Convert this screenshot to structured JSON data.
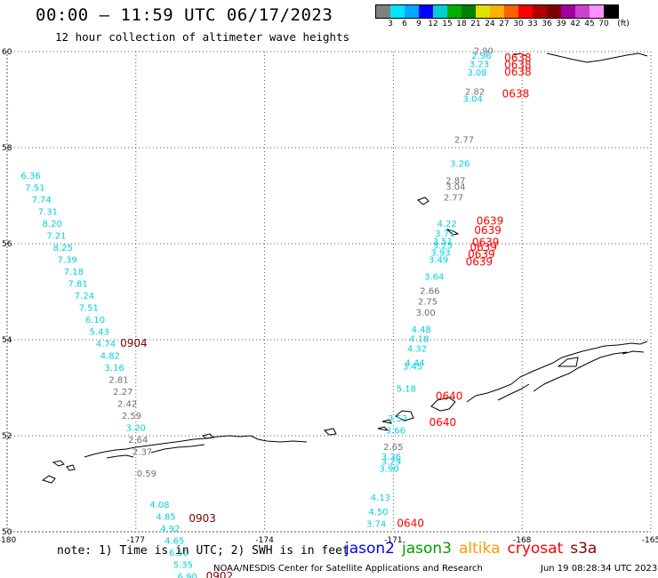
{
  "title": "00:00 – 11:59 UTC 06/17/2023",
  "subtitle": "12 hour collection of altimeter wave heights",
  "legend": {
    "unit": "(ft)",
    "colors": [
      "#808080",
      "#00e5ff",
      "#00a8ff",
      "#0000ff",
      "#00d0d0",
      "#00b000",
      "#008000",
      "#e0e000",
      "#ffb000",
      "#ff6000",
      "#ff0000",
      "#b00000",
      "#800000",
      "#a000a0",
      "#d040d0",
      "#ff90ff",
      "#000000"
    ],
    "labels": [
      "3",
      "6",
      "9",
      "12",
      "15",
      "18",
      "21",
      "24",
      "27",
      "30",
      "33",
      "36",
      "39",
      "42",
      "45",
      "70"
    ]
  },
  "axes": {
    "lon_labels": [
      "-180",
      "-177",
      "-174",
      "-171",
      "-168",
      "-165"
    ],
    "lat_labels": [
      "60",
      "58",
      "56",
      "54",
      "52",
      "50"
    ]
  },
  "colors": {
    "cyan": "#00d0e0",
    "gray": "#707070",
    "red": "#ff0000",
    "maroon": "#800000"
  },
  "tracks": [
    {
      "name": "west-track",
      "readings": [
        {
          "v": "6.36",
          "c": "cyan",
          "lon": -179.45,
          "lat": 57.35
        },
        {
          "v": "7.51",
          "c": "cyan",
          "lon": -179.35,
          "lat": 57.1
        },
        {
          "v": "7.74",
          "c": "cyan",
          "lon": -179.2,
          "lat": 56.85
        },
        {
          "v": "7.31",
          "c": "cyan",
          "lon": -179.05,
          "lat": 56.6
        },
        {
          "v": "8.20",
          "c": "cyan",
          "lon": -178.95,
          "lat": 56.35
        },
        {
          "v": "7.21",
          "c": "cyan",
          "lon": -178.85,
          "lat": 56.1
        },
        {
          "v": "8.25",
          "c": "cyan",
          "lon": -178.7,
          "lat": 55.85
        },
        {
          "v": "7.39",
          "c": "cyan",
          "lon": -178.6,
          "lat": 55.6
        },
        {
          "v": "7.18",
          "c": "cyan",
          "lon": -178.45,
          "lat": 55.35
        },
        {
          "v": "7.81",
          "c": "cyan",
          "lon": -178.35,
          "lat": 55.1
        },
        {
          "v": "7.24",
          "c": "cyan",
          "lon": -178.2,
          "lat": 54.85
        },
        {
          "v": "7.51",
          "c": "cyan",
          "lon": -178.1,
          "lat": 54.6
        },
        {
          "v": "6.10",
          "c": "cyan",
          "lon": -177.95,
          "lat": 54.35
        },
        {
          "v": "5.43",
          "c": "cyan",
          "lon": -177.85,
          "lat": 54.1
        },
        {
          "v": "4.74",
          "c": "cyan",
          "lon": -177.7,
          "lat": 53.85
        },
        {
          "v": "4.82",
          "c": "cyan",
          "lon": -177.6,
          "lat": 53.6
        },
        {
          "v": "3.16",
          "c": "cyan",
          "lon": -177.5,
          "lat": 53.35
        },
        {
          "v": "2.81",
          "c": "gray",
          "lon": -177.4,
          "lat": 53.1
        },
        {
          "v": "2.27",
          "c": "gray",
          "lon": -177.3,
          "lat": 52.85
        },
        {
          "v": "2.42",
          "c": "gray",
          "lon": -177.2,
          "lat": 52.6
        },
        {
          "v": "2.59",
          "c": "gray",
          "lon": -177.1,
          "lat": 52.35
        },
        {
          "v": "3.20",
          "c": "cyan",
          "lon": -177.0,
          "lat": 52.1
        },
        {
          "v": "2.64",
          "c": "gray",
          "lon": -176.95,
          "lat": 51.85
        },
        {
          "v": "2.37",
          "c": "gray",
          "lon": -176.85,
          "lat": 51.6
        },
        {
          "v": "0.59",
          "c": "gray",
          "lon": -176.75,
          "lat": 51.15
        },
        {
          "v": "4.08",
          "c": "cyan",
          "lon": -176.45,
          "lat": 50.5
        },
        {
          "v": "4.85",
          "c": "cyan",
          "lon": -176.3,
          "lat": 50.25
        },
        {
          "v": "4.92",
          "c": "cyan",
          "lon": -176.2,
          "lat": 50.0
        },
        {
          "v": "4.65",
          "c": "cyan",
          "lon": -176.1,
          "lat": 49.75
        },
        {
          "v": "6.50",
          "c": "cyan",
          "lon": -176.0,
          "lat": 49.5
        },
        {
          "v": "5.35",
          "c": "cyan",
          "lon": -175.9,
          "lat": 49.25
        },
        {
          "v": "6.90",
          "c": "cyan",
          "lon": -175.8,
          "lat": 49.0
        }
      ],
      "times": [
        {
          "t": "0904",
          "c": "maroon",
          "lon": -177.05,
          "lat": 53.85
        },
        {
          "t": "0903",
          "c": "maroon",
          "lon": -175.45,
          "lat": 50.2
        },
        {
          "t": "0902",
          "c": "maroon",
          "lon": -175.05,
          "lat": 49.0
        }
      ]
    },
    {
      "name": "east-track",
      "readings": [
        {
          "v": "2.90",
          "c": "gray",
          "lon": -168.9,
          "lat": 59.95
        },
        {
          "v": "2.96",
          "c": "cyan",
          "lon": -168.95,
          "lat": 59.85
        },
        {
          "v": "3.23",
          "c": "cyan",
          "lon": -169.0,
          "lat": 59.68
        },
        {
          "v": "3.08",
          "c": "cyan",
          "lon": -169.05,
          "lat": 59.5
        },
        {
          "v": "2.82",
          "c": "gray",
          "lon": -169.1,
          "lat": 59.1
        },
        {
          "v": "3.04",
          "c": "cyan",
          "lon": -169.15,
          "lat": 58.95
        },
        {
          "v": "2.77",
          "c": "gray",
          "lon": -169.35,
          "lat": 58.1
        },
        {
          "v": "3.26",
          "c": "cyan",
          "lon": -169.45,
          "lat": 57.6
        },
        {
          "v": "2.87",
          "c": "gray",
          "lon": -169.55,
          "lat": 57.25
        },
        {
          "v": "3.04",
          "c": "gray",
          "lon": -169.55,
          "lat": 57.12
        },
        {
          "v": "2.77",
          "c": "gray",
          "lon": -169.6,
          "lat": 56.9
        },
        {
          "v": "4.22",
          "c": "cyan",
          "lon": -169.75,
          "lat": 56.35
        },
        {
          "v": "3.71",
          "c": "cyan",
          "lon": -169.8,
          "lat": 56.15
        },
        {
          "v": "3.51",
          "c": "cyan",
          "lon": -169.85,
          "lat": 55.98
        },
        {
          "v": "3.25",
          "c": "cyan",
          "lon": -169.85,
          "lat": 55.9
        },
        {
          "v": "3.93",
          "c": "cyan",
          "lon": -169.9,
          "lat": 55.75
        },
        {
          "v": "3.49",
          "c": "cyan",
          "lon": -169.95,
          "lat": 55.6
        },
        {
          "v": "3.64",
          "c": "cyan",
          "lon": -170.05,
          "lat": 55.25
        },
        {
          "v": "2.66",
          "c": "gray",
          "lon": -170.15,
          "lat": 54.95
        },
        {
          "v": "2.75",
          "c": "gray",
          "lon": -170.2,
          "lat": 54.73
        },
        {
          "v": "3.00",
          "c": "gray",
          "lon": -170.25,
          "lat": 54.5
        },
        {
          "v": "4.48",
          "c": "cyan",
          "lon": -170.35,
          "lat": 54.15
        },
        {
          "v": "4.18",
          "c": "cyan",
          "lon": -170.4,
          "lat": 53.95
        },
        {
          "v": "4.32",
          "c": "cyan",
          "lon": -170.45,
          "lat": 53.75
        },
        {
          "v": "4.44",
          "c": "cyan",
          "lon": -170.5,
          "lat": 53.45
        },
        {
          "v": "3.45",
          "c": "cyan",
          "lon": -170.55,
          "lat": 53.38
        },
        {
          "v": "5.18",
          "c": "cyan",
          "lon": -170.7,
          "lat": 52.92
        },
        {
          "v": "3.52",
          "c": "cyan",
          "lon": -170.9,
          "lat": 52.3
        },
        {
          "v": "3.66",
          "c": "cyan",
          "lon": -170.95,
          "lat": 52.05
        },
        {
          "v": "2.65",
          "c": "gray",
          "lon": -171.0,
          "lat": 51.7
        },
        {
          "v": "3.36",
          "c": "cyan",
          "lon": -171.05,
          "lat": 51.5
        },
        {
          "v": "3.29",
          "c": "cyan",
          "lon": -171.05,
          "lat": 51.4
        },
        {
          "v": "3.90",
          "c": "cyan",
          "lon": -171.1,
          "lat": 51.25
        },
        {
          "v": "4.13",
          "c": "cyan",
          "lon": -171.3,
          "lat": 50.65
        },
        {
          "v": "4.50",
          "c": "cyan",
          "lon": -171.35,
          "lat": 50.35
        },
        {
          "v": "3.74",
          "c": "cyan",
          "lon": -171.4,
          "lat": 50.1
        }
      ],
      "times": [
        {
          "t": "0638",
          "c": "red",
          "lon": -168.1,
          "lat": 59.8
        },
        {
          "t": "0638",
          "c": "red",
          "lon": -168.1,
          "lat": 59.65
        },
        {
          "t": "0638",
          "c": "red",
          "lon": -168.1,
          "lat": 59.5
        },
        {
          "t": "0638",
          "c": "red",
          "lon": -168.15,
          "lat": 59.05
        },
        {
          "t": "0639",
          "c": "red",
          "lon": -168.75,
          "lat": 56.4
        },
        {
          "t": "0639",
          "c": "red",
          "lon": -168.8,
          "lat": 56.2
        },
        {
          "t": "0639",
          "c": "red",
          "lon": -168.85,
          "lat": 55.95
        },
        {
          "t": "0639",
          "c": "red",
          "lon": -168.9,
          "lat": 55.85
        },
        {
          "t": "0639",
          "c": "red",
          "lon": -168.95,
          "lat": 55.7
        },
        {
          "t": "0639",
          "c": "red",
          "lon": -169.0,
          "lat": 55.55
        },
        {
          "t": "0640",
          "c": "red",
          "lon": -169.7,
          "lat": 52.75
        },
        {
          "t": "0640",
          "c": "red",
          "lon": -169.85,
          "lat": 52.2
        },
        {
          "t": "0640",
          "c": "red",
          "lon": -170.6,
          "lat": 50.1
        }
      ]
    }
  ],
  "note": "note: 1) Time is in UTC; 2) SWH is in feet",
  "satellites": [
    {
      "name": "jason2",
      "color": "#0000ff"
    },
    {
      "name": "jason3",
      "color": "#00a000"
    },
    {
      "name": "altika",
      "color": "#ff9900"
    },
    {
      "name": "cryosat",
      "color": "#ff0000"
    },
    {
      "name": "s3a",
      "color": "#800000"
    }
  ],
  "credit": "NOAA/NESDIS Center for Satellite Applications and Research",
  "generated": "Jun 19 08:28:34 UTC 2023"
}
